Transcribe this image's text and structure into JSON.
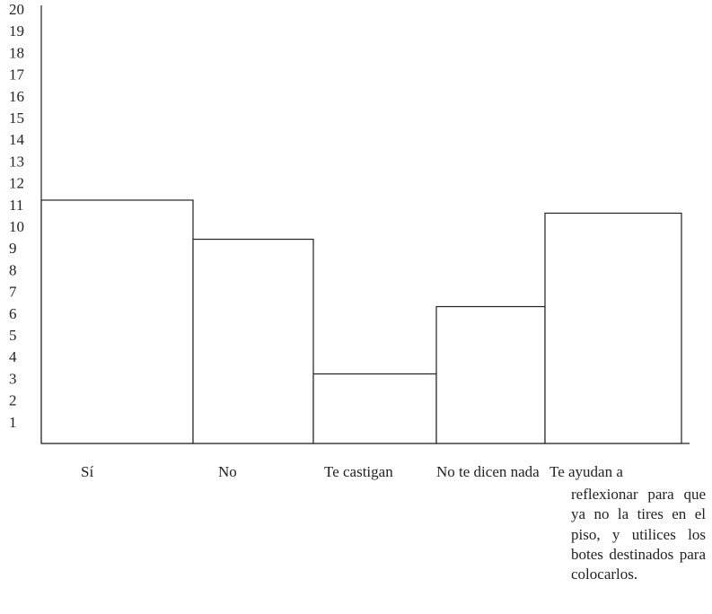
{
  "chart_data": {
    "type": "bar",
    "categories": [
      "Sí",
      "No",
      "Te castigan",
      "No te dicen nada",
      "Te ayudan a reflexionar para que ya no la tires en el piso, y utilices los botes destinados para colocarlos."
    ],
    "values": [
      11.2,
      9.4,
      3.2,
      6.3,
      10.6
    ],
    "ylim": [
      0,
      20
    ],
    "yticks": [
      "1",
      "2",
      "3",
      "4",
      "5",
      "6",
      "7",
      "8",
      "9",
      "10",
      "11",
      "12",
      "13",
      "14",
      "15",
      "16",
      "17",
      "18",
      "19",
      "20"
    ],
    "grid": false,
    "title": "",
    "xlabel": "",
    "ylabel": "",
    "bar_fill": "#ffffff",
    "stroke_color": "#222222"
  }
}
